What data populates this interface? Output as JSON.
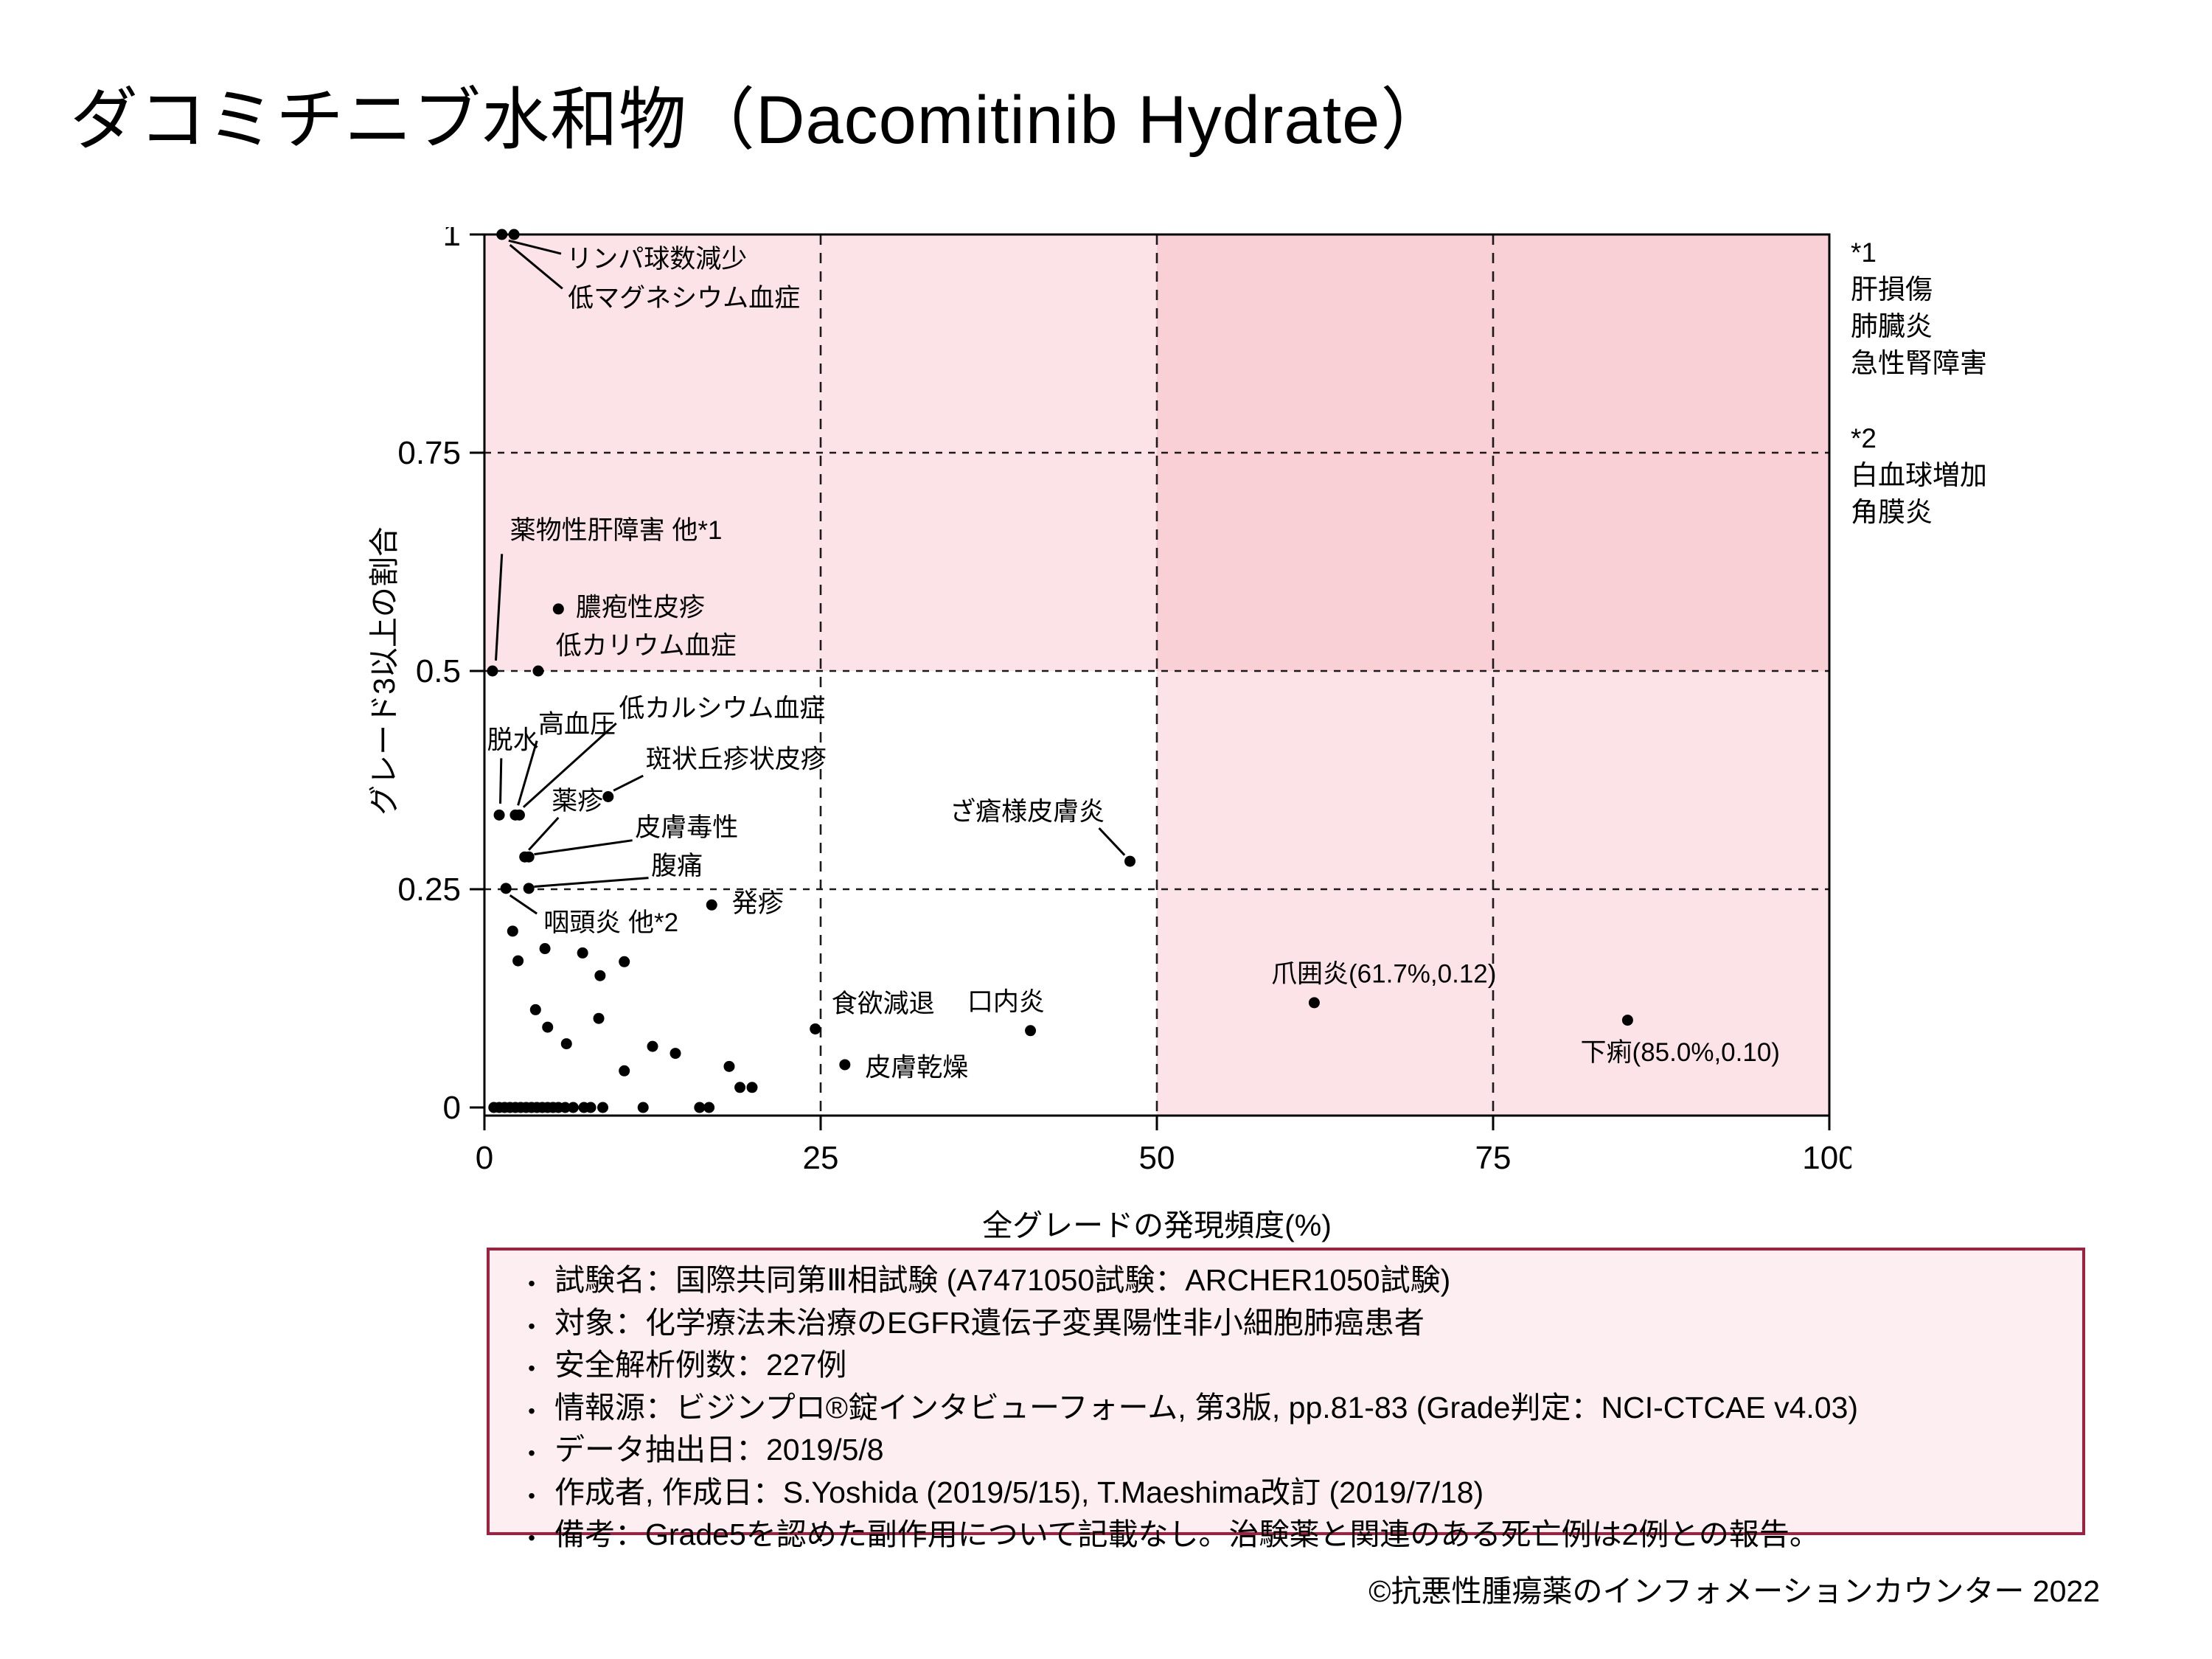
{
  "page": {
    "title": "ダコミチニブ水和物（Dacomitinib Hydrate）",
    "footer": "©抗悪性腫瘍薬のインフォメーションカウンター 2022"
  },
  "side_notes": [
    {
      "marker": "*1",
      "items": [
        "肝損傷",
        "肺臓炎",
        "急性腎障害"
      ]
    },
    {
      "marker": "*2",
      "items": [
        "白血球増加",
        "角膜炎"
      ]
    }
  ],
  "info_box": {
    "bullet": "•",
    "lines": [
      "試験名：国際共同第Ⅲ相試験 (A7471050試験：ARCHER1050試験)",
      "対象：化学療法未治療のEGFR遺伝子変異陽性非小細胞肺癌患者",
      "安全解析例数：227例",
      "情報源：ビジンプロ®錠インタビューフォーム, 第3版, pp.81-83 (Grade判定：NCI-CTCAE v4.03)",
      "データ抽出日：2019/5/8",
      "作成者, 作成日：S.Yoshida (2019/5/15), T.Maeshima改訂 (2019/7/18)",
      "備考：Grade5を認めた副作用について記載なし。治験薬と関連のある死亡例は2例との報告。"
    ]
  },
  "chart_data": {
    "type": "scatter",
    "xlabel": "全グレードの発現頻度(%)",
    "ylabel": "グレード3以上の割合",
    "xlim": [
      0,
      100
    ],
    "ylim": [
      0,
      1
    ],
    "xticks": [
      0,
      25,
      50,
      75,
      100
    ],
    "yticks": [
      0,
      0.25,
      0.5,
      0.75,
      1
    ],
    "grid_x": [
      25,
      50,
      75
    ],
    "grid_y": [
      0.25,
      0.5,
      0.75
    ],
    "regions": {
      "top_band": {
        "y_from": 0.5,
        "y_to": 1.0,
        "color": "rgba(246,170,182,0.33)"
      },
      "right_band": {
        "x_from": 50,
        "x_to": 100,
        "color": "rgba(246,170,182,0.33)"
      }
    },
    "point_color": "#000000",
    "labeled_points": [
      {
        "x": 1.3,
        "y": 1.0,
        "label": "リンパ球数減少",
        "lx": 6.1,
        "ly": 0.973,
        "leader": [
          1.8,
          0.993,
          5.7,
          0.978
        ]
      },
      {
        "x": 2.2,
        "y": 1.0,
        "label": "低マグネシウム血症",
        "lx": 6.2,
        "ly": 0.928,
        "leader": [
          1.9,
          0.988,
          5.8,
          0.938
        ]
      },
      {
        "x": 0.6,
        "y": 0.5,
        "label": "薬物性肝障害 他*1",
        "lx": 1.9,
        "ly": 0.662,
        "leader": [
          1.3,
          0.634,
          0.85,
          0.512
        ]
      },
      {
        "x": 5.5,
        "y": 0.571,
        "label": "膿疱性皮疹",
        "lx": 6.8,
        "ly": 0.574
      },
      {
        "x": 4.0,
        "y": 0.5,
        "label": "低カリウム血症",
        "lx": 5.3,
        "ly": 0.53
      },
      {
        "x": 1.1,
        "y": 0.335,
        "label": "脱水",
        "lx": 0.2,
        "ly": 0.422,
        "leader": [
          1.25,
          0.4,
          1.18,
          0.348
        ]
      },
      {
        "x": 2.3,
        "y": 0.335,
        "label": "高血圧",
        "lx": 4.0,
        "ly": 0.44,
        "leader": [
          3.9,
          0.42,
          2.5,
          0.346
        ]
      },
      {
        "x": 2.6,
        "y": 0.335,
        "label": "低カルシウム血症",
        "lx": 10.0,
        "ly": 0.458,
        "leader": [
          9.8,
          0.44,
          2.9,
          0.344
        ]
      },
      {
        "x": 9.2,
        "y": 0.356,
        "label": "斑状丘疹状皮疹",
        "lx": 12.0,
        "ly": 0.4,
        "leader": [
          11.8,
          0.38,
          9.6,
          0.363
        ]
      },
      {
        "x": 3.0,
        "y": 0.287,
        "label": "薬疹",
        "lx": 5.0,
        "ly": 0.352,
        "leader": [
          5.5,
          0.332,
          3.3,
          0.295
        ]
      },
      {
        "x": 3.3,
        "y": 0.287,
        "label": "皮膚毒性",
        "lx": 11.2,
        "ly": 0.322,
        "leader": [
          11.0,
          0.306,
          3.7,
          0.29
        ]
      },
      {
        "x": 1.6,
        "y": 0.251,
        "label": "咽頭炎 他*2",
        "lx": 4.4,
        "ly": 0.213,
        "leader": [
          1.9,
          0.243,
          3.9,
          0.222
        ]
      },
      {
        "x": 3.3,
        "y": 0.251,
        "label": "腹痛",
        "lx": 12.4,
        "ly": 0.278,
        "leader": [
          12.2,
          0.263,
          3.7,
          0.253
        ]
      },
      {
        "x": 16.9,
        "y": 0.232,
        "label": "発疹",
        "lx": 18.4,
        "ly": 0.235
      },
      {
        "x": 48.0,
        "y": 0.282,
        "label": "ざ瘡様皮膚炎",
        "lx": 34.6,
        "ly": 0.34,
        "leader": [
          45.7,
          0.32,
          47.6,
          0.289
        ]
      },
      {
        "x": 24.6,
        "y": 0.09,
        "label": "食欲減退",
        "lx": 25.8,
        "ly": 0.12
      },
      {
        "x": 26.8,
        "y": 0.049,
        "label": "皮膚乾燥",
        "lx": 28.3,
        "ly": 0.047
      },
      {
        "x": 40.6,
        "y": 0.088,
        "label": "口内炎",
        "lx": 35.9,
        "ly": 0.122
      },
      {
        "x": 61.7,
        "y": 0.12,
        "label": "爪囲炎(61.7%,0.12)",
        "lx": 58.5,
        "ly": 0.154
      },
      {
        "x": 85.0,
        "y": 0.1,
        "label": "下痢(85.0%,0.10)",
        "lx": 81.5,
        "ly": 0.064
      }
    ],
    "unlabeled_points": [
      {
        "x": 2.1,
        "y": 0.202
      },
      {
        "x": 2.5,
        "y": 0.168
      },
      {
        "x": 4.5,
        "y": 0.182
      },
      {
        "x": 7.3,
        "y": 0.177
      },
      {
        "x": 10.4,
        "y": 0.167
      },
      {
        "x": 8.6,
        "y": 0.151
      },
      {
        "x": 3.8,
        "y": 0.112
      },
      {
        "x": 8.5,
        "y": 0.102
      },
      {
        "x": 4.7,
        "y": 0.092
      },
      {
        "x": 6.1,
        "y": 0.073
      },
      {
        "x": 12.5,
        "y": 0.07
      },
      {
        "x": 14.2,
        "y": 0.062
      },
      {
        "x": 18.2,
        "y": 0.047
      },
      {
        "x": 10.4,
        "y": 0.042
      },
      {
        "x": 19.0,
        "y": 0.023
      },
      {
        "x": 19.9,
        "y": 0.023
      }
    ],
    "zero_row_x": [
      0.7,
      1.1,
      1.5,
      1.9,
      2.3,
      2.7,
      3.1,
      3.5,
      3.9,
      4.3,
      4.7,
      5.1,
      5.5,
      6.0,
      6.6,
      7.4,
      7.9,
      8.8,
      11.8,
      16.0,
      16.7
    ]
  }
}
